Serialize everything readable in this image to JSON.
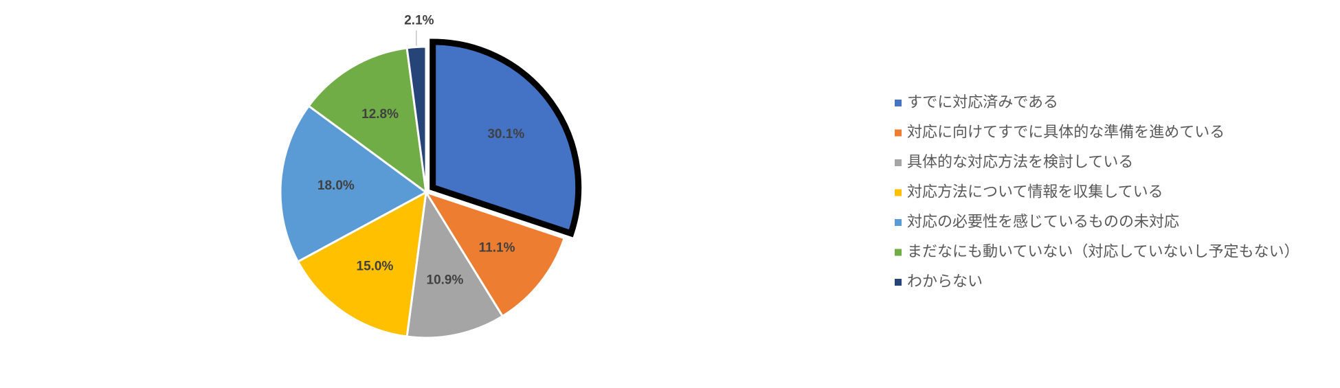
{
  "chart_data": {
    "type": "pie",
    "categories": [
      "すでに対応済みである",
      "対応に向けてすでに具体的な準備を進めている",
      "具体的な対応方法を検討している",
      "対応方法について情報を収集している",
      "対応の必要性を感じているものの未対応",
      "まだなにも動いていない（対応していないし予定もない）",
      "わからない"
    ],
    "values": [
      30.1,
      11.1,
      10.9,
      15.0,
      18.0,
      12.8,
      2.1
    ],
    "value_labels": [
      "30.1%",
      "11.1%",
      "10.9%",
      "15.0%",
      "18.0%",
      "12.8%",
      "2.1%"
    ],
    "colors": [
      "#4472c4",
      "#ed7d31",
      "#a5a5a5",
      "#ffc000",
      "#5b9bd5",
      "#70ad47",
      "#264478"
    ],
    "legend": "right"
  }
}
